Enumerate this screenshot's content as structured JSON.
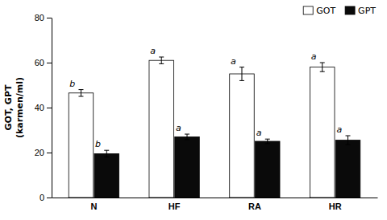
{
  "chart_data": {
    "type": "bar",
    "categories": [
      "N",
      "HF",
      "RA",
      "HR"
    ],
    "series": [
      {
        "name": "GOT",
        "color": "#ffffff",
        "values": [
          46.5,
          61.0,
          55.0,
          58.0
        ],
        "errors": [
          1.5,
          1.5,
          3.0,
          2.0
        ],
        "letters": [
          "b",
          "a",
          "a",
          "a"
        ]
      },
      {
        "name": "GPT",
        "color": "#0a0a0a",
        "values": [
          19.5,
          27.0,
          25.0,
          25.5
        ],
        "errors": [
          1.5,
          1.2,
          1.0,
          2.0
        ],
        "letters": [
          "b",
          "a",
          "a",
          "a"
        ]
      }
    ],
    "ylabel": [
      "GOT, GPT",
      "(karmen/ml)"
    ],
    "ylim": [
      0,
      80
    ],
    "yticks": [
      0,
      20,
      40,
      60,
      80
    ],
    "legend": "upper right"
  }
}
